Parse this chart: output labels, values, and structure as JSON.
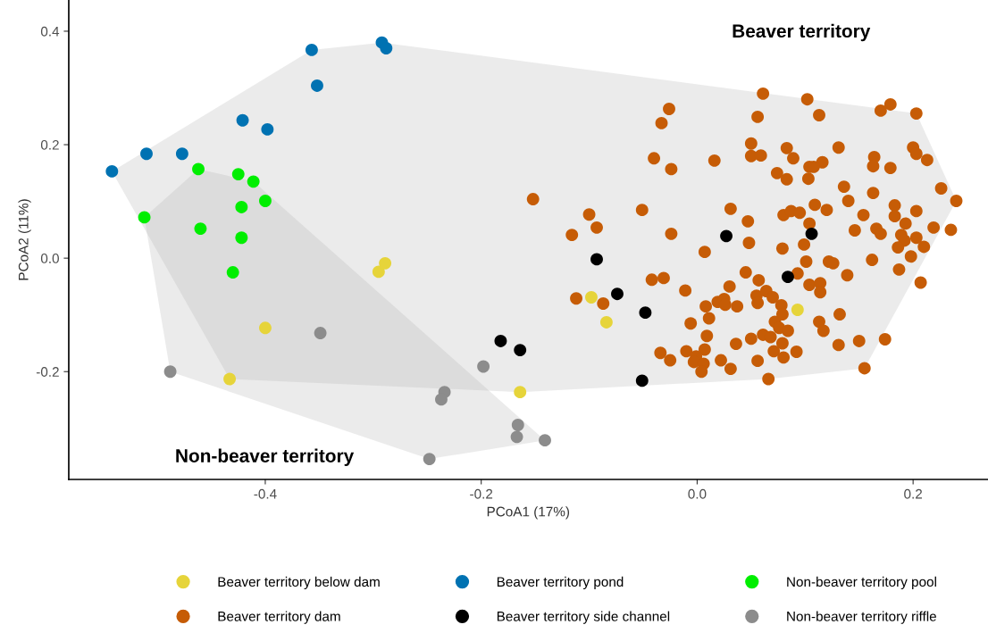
{
  "chart_data": {
    "type": "scatter",
    "xlabel": "PCoA1 (17%)",
    "ylabel": "PCoA2 (11%)",
    "xlim": [
      -0.582,
      0.269
    ],
    "ylim": [
      -0.39,
      0.455
    ],
    "xticks": [
      -0.4,
      -0.2,
      {
        "value": 0,
        "label": "0.0"
      },
      0.2
    ],
    "yticks": [
      -0.2,
      {
        "value": 0,
        "label": "0.0"
      },
      0.2,
      0.4
    ],
    "grid": false,
    "legend": "bottom",
    "annotations": [
      "Beaver territory",
      "Non-beaver territory"
    ],
    "series": [
      {
        "type": "area",
        "color": "#afafaf",
        "x": [
          -0.542,
          -0.357,
          -0.292,
          0.203,
          0.24,
          0.155,
          0.066,
          -0.164,
          -0.433
        ],
        "values": [
          0.153,
          0.367,
          0.38,
          0.255,
          0.101,
          -0.194,
          -0.213,
          -0.236,
          -0.213
        ]
      },
      {
        "type": "area",
        "color": "#afafaf",
        "x": [
          -0.512,
          -0.462,
          -0.411,
          -0.141,
          -0.248,
          -0.488
        ],
        "values": [
          0.072,
          0.157,
          0.135,
          -0.321,
          -0.354,
          -0.2
        ]
      },
      {
        "name": "Beaver territory below dam",
        "marker": "circle",
        "color": "#e6d43a",
        "x": [
          -0.295,
          -0.289,
          -0.4,
          -0.433,
          -0.164,
          -0.098,
          -0.084,
          0.093
        ],
        "values": [
          -0.024,
          -0.009,
          -0.123,
          -0.213,
          -0.236,
          -0.069,
          -0.113,
          -0.091
        ]
      },
      {
        "name": "Beaver territory dam",
        "marker": "circle",
        "color": "#c65c06",
        "x": [
          0.061,
          0.102,
          0.179,
          0.17,
          0.203,
          -0.026,
          -0.033,
          0.056,
          0.113,
          0.05,
          0.083,
          0.131,
          0.2,
          0.203,
          0.213,
          0.05,
          0.059,
          0.089,
          0.164,
          0.163,
          0.179,
          -0.04,
          -0.024,
          0.016,
          0.104,
          0.116,
          0.074,
          0.083,
          0.103,
          0.108,
          0.136,
          0.163,
          0.226,
          0.24,
          0.14,
          -0.152,
          -0.1,
          -0.093,
          -0.116,
          -0.051,
          -0.024,
          0.031,
          0.047,
          0.048,
          0.007,
          0.079,
          0.099,
          0.08,
          0.087,
          0.095,
          0.109,
          0.12,
          0.104,
          0.154,
          0.183,
          0.203,
          0.183,
          0.193,
          0.146,
          0.166,
          0.17,
          0.189,
          0.203,
          0.192,
          0.219,
          0.235,
          0.21,
          0.186,
          0.198,
          0.162,
          0.122,
          0.101,
          0.126,
          0.187,
          0.207,
          0.139,
          0.093,
          0.045,
          0.057,
          -0.042,
          -0.031,
          0.104,
          0.114,
          0.114,
          -0.112,
          -0.087,
          -0.011,
          0.03,
          0.055,
          0.064,
          0.07,
          0.056,
          0.019,
          0.025,
          0.026,
          0.037,
          0.008,
          0.011,
          -0.006,
          0.078,
          0.079,
          0.072,
          0.076,
          0.084,
          0.061,
          0.05,
          0.068,
          0.079,
          0.009,
          0.036,
          0.113,
          0.117,
          0.132,
          0.131,
          0.15,
          0.174,
          -0.034,
          -0.025,
          -0.01,
          0.007,
          -0.001,
          -0.003,
          0.006,
          0.004,
          0.022,
          0.031,
          0.056,
          0.071,
          0.08,
          0.092,
          0.155,
          0.066
        ],
        "values": [
          0.29,
          0.28,
          0.271,
          0.26,
          0.255,
          0.263,
          0.238,
          0.249,
          0.252,
          0.202,
          0.194,
          0.195,
          0.195,
          0.184,
          0.173,
          0.18,
          0.181,
          0.176,
          0.178,
          0.162,
          0.159,
          0.176,
          0.157,
          0.172,
          0.161,
          0.169,
          0.15,
          0.139,
          0.14,
          0.161,
          0.126,
          0.115,
          0.123,
          0.101,
          0.101,
          0.104,
          0.077,
          0.054,
          0.041,
          0.085,
          0.043,
          0.087,
          0.065,
          0.027,
          0.011,
          0.017,
          0.024,
          0.076,
          0.083,
          0.08,
          0.094,
          0.085,
          0.061,
          0.076,
          0.093,
          0.083,
          0.074,
          0.061,
          0.049,
          0.052,
          0.043,
          0.041,
          0.036,
          0.031,
          0.054,
          0.05,
          0.02,
          0.019,
          0.003,
          -0.003,
          -0.006,
          -0.006,
          -0.009,
          -0.02,
          -0.043,
          -0.03,
          -0.027,
          -0.025,
          -0.039,
          -0.038,
          -0.035,
          -0.047,
          -0.044,
          -0.06,
          -0.071,
          -0.08,
          -0.057,
          -0.05,
          -0.066,
          -0.058,
          -0.069,
          -0.079,
          -0.077,
          -0.072,
          -0.082,
          -0.085,
          -0.085,
          -0.106,
          -0.115,
          -0.083,
          -0.099,
          -0.112,
          -0.123,
          -0.128,
          -0.135,
          -0.142,
          -0.139,
          -0.15,
          -0.137,
          -0.151,
          -0.112,
          -0.128,
          -0.099,
          -0.153,
          -0.146,
          -0.143,
          -0.167,
          -0.18,
          -0.164,
          -0.161,
          -0.173,
          -0.183,
          -0.186,
          -0.2,
          -0.18,
          -0.195,
          -0.181,
          -0.164,
          -0.175,
          -0.165,
          -0.194,
          -0.213
        ]
      },
      {
        "name": "Beaver territory pond",
        "marker": "circle",
        "color": "#0072b2",
        "x": [
          -0.542,
          -0.51,
          -0.477,
          -0.421,
          -0.398,
          -0.357,
          -0.352,
          -0.292,
          -0.288
        ],
        "values": [
          0.153,
          0.184,
          0.184,
          0.243,
          0.227,
          0.367,
          0.304,
          0.38,
          0.37
        ]
      },
      {
        "name": "Beaver territory side channel",
        "marker": "circle",
        "color": "#000000",
        "x": [
          -0.093,
          -0.074,
          -0.048,
          -0.182,
          -0.164,
          -0.051,
          0.027,
          0.106,
          0.084
        ],
        "values": [
          -0.002,
          -0.063,
          -0.096,
          -0.146,
          -0.162,
          -0.216,
          0.039,
          0.043,
          -0.033
        ]
      },
      {
        "name": "Non-beaver territory pool",
        "marker": "circle",
        "color": "#00ee00",
        "x": [
          -0.512,
          -0.462,
          -0.425,
          -0.411,
          -0.422,
          -0.4,
          -0.46,
          -0.422,
          -0.43
        ],
        "values": [
          0.072,
          0.157,
          0.148,
          0.135,
          0.09,
          0.101,
          0.052,
          0.036,
          -0.025
        ]
      },
      {
        "name": "Non-beaver territory riffle",
        "marker": "circle",
        "color": "#8c8c8c",
        "x": [
          -0.488,
          -0.349,
          -0.198,
          -0.234,
          -0.237,
          -0.166,
          -0.167,
          -0.141,
          -0.248
        ],
        "values": [
          -0.2,
          -0.132,
          -0.191,
          -0.236,
          -0.249,
          -0.294,
          -0.315,
          -0.321,
          -0.354
        ]
      }
    ]
  }
}
